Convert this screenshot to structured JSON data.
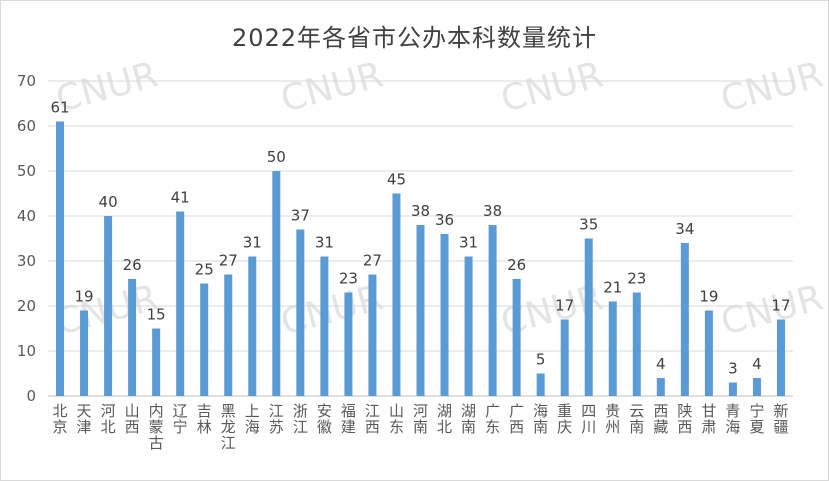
{
  "chart_data": {
    "type": "bar",
    "title": "2022年各省市公办本科数量统计",
    "xlabel": "",
    "ylabel": "",
    "ylim": [
      0,
      70
    ],
    "yticks": [
      0,
      10,
      20,
      30,
      40,
      50,
      60,
      70
    ],
    "grid": true,
    "legend": "none",
    "bar_color": "#5b9bd5",
    "categories": [
      "北京",
      "天津",
      "河北",
      "山西",
      "内蒙古",
      "辽宁",
      "吉林",
      "黑龙江",
      "上海",
      "江苏",
      "浙江",
      "安徽",
      "福建",
      "江西",
      "山东",
      "河南",
      "湖北",
      "湖南",
      "广东",
      "广西",
      "海南",
      "重庆",
      "四川",
      "贵州",
      "云南",
      "西藏",
      "陕西",
      "甘肃",
      "青海",
      "宁夏",
      "新疆"
    ],
    "values": [
      61,
      19,
      40,
      26,
      15,
      41,
      25,
      27,
      31,
      50,
      37,
      31,
      23,
      27,
      45,
      38,
      36,
      31,
      38,
      26,
      5,
      17,
      35,
      21,
      23,
      4,
      34,
      19,
      3,
      4,
      17
    ]
  },
  "watermark": "CNUR"
}
